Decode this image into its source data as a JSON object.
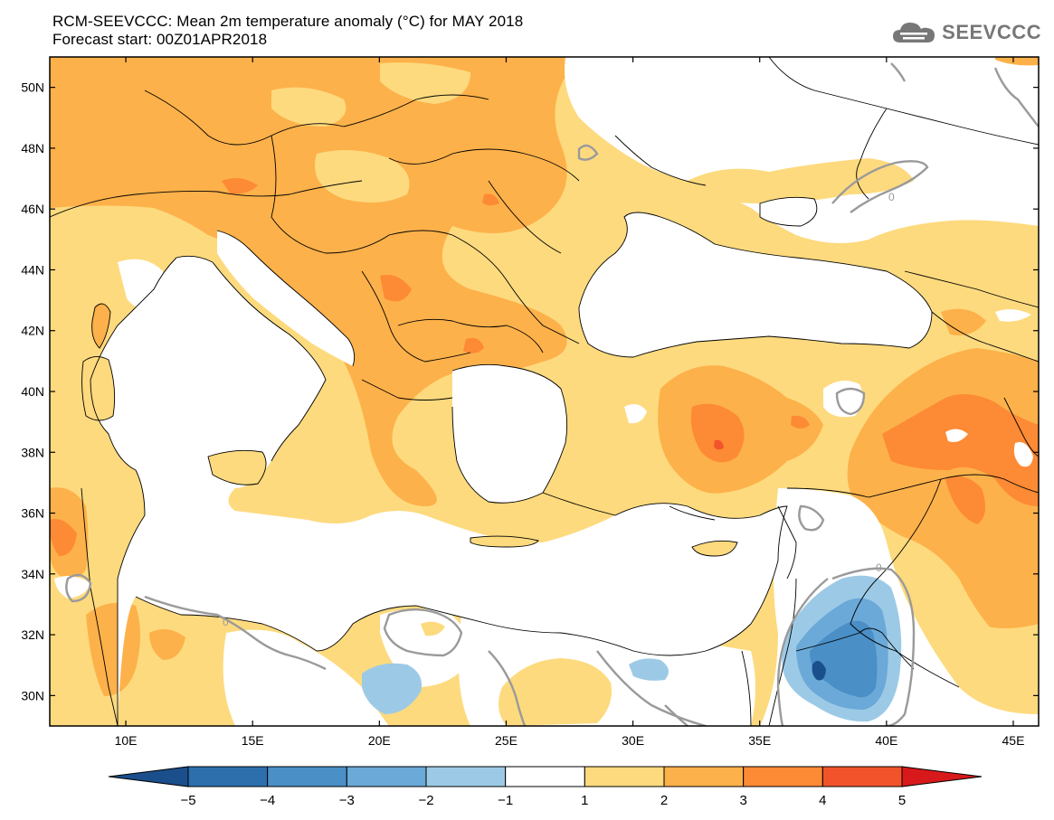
{
  "header": {
    "title": "RCM-SEEVCCC: Mean 2m temperature anomaly (°C) for MAY 2018",
    "subtitle": "Forecast start: 00Z01APR2018",
    "logo_text": "SEEVCCC"
  },
  "map": {
    "lon_range": [
      7,
      46
    ],
    "lat_range": [
      29,
      51
    ],
    "lat_labels": [
      "30N",
      "32N",
      "34N",
      "36N",
      "38N",
      "40N",
      "42N",
      "44N",
      "46N",
      "48N",
      "50N"
    ],
    "lat_values": [
      30,
      32,
      34,
      36,
      38,
      40,
      42,
      44,
      46,
      48,
      50
    ],
    "lon_labels": [
      "10E",
      "15E",
      "20E",
      "25E",
      "30E",
      "35E",
      "40E",
      "45E"
    ],
    "lon_values": [
      10,
      15,
      20,
      25,
      30,
      35,
      40,
      45
    ],
    "contour_label": "0"
  },
  "legend": {
    "ticks": [
      "−5",
      "−4",
      "−3",
      "−2",
      "−1",
      "1",
      "2",
      "3",
      "4",
      "5"
    ],
    "colors": [
      "#1a4f8c",
      "#2d6fad",
      "#4a8fc6",
      "#6aa9d8",
      "#9ccae6",
      "#ffffff",
      "#fdda7e",
      "#fdb14a",
      "#fd8a35",
      "#f2532a",
      "#d7191c"
    ]
  }
}
